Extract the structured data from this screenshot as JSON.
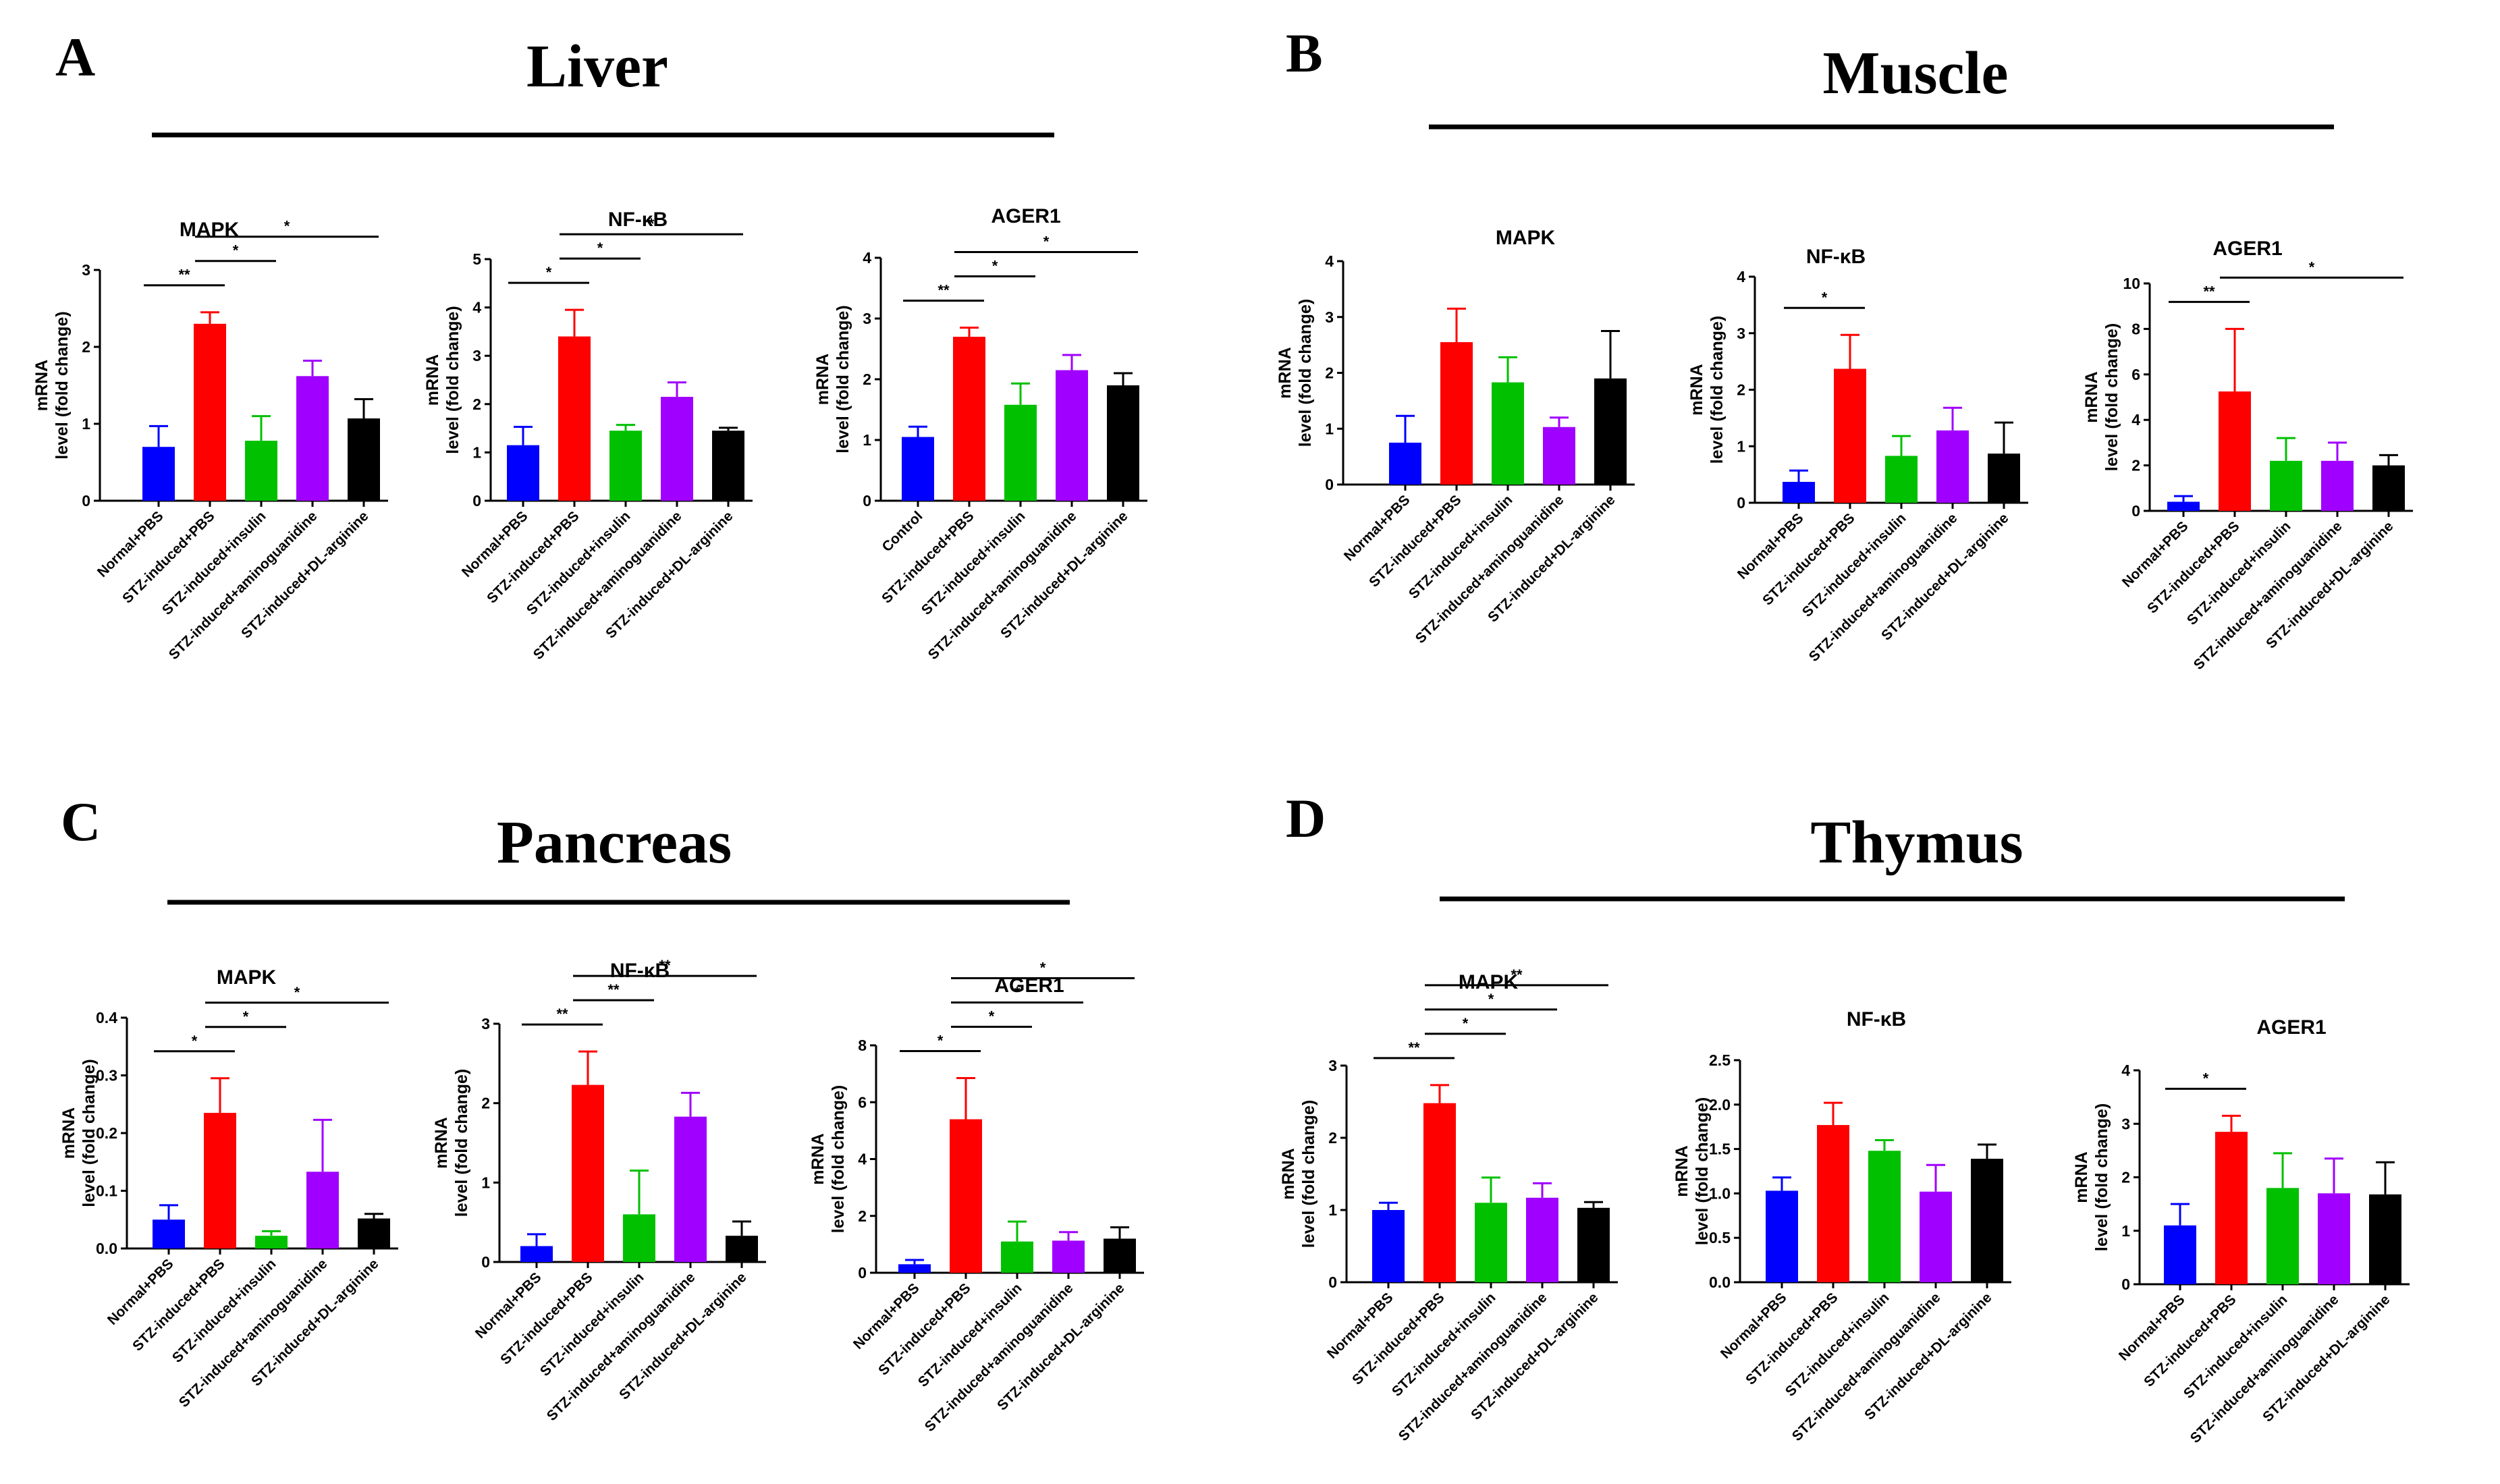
{
  "ylabel_line1": "mRNA",
  "ylabel_line2": "level (fold change)",
  "panels": [
    {
      "letter": "A",
      "title": "Liver"
    },
    {
      "letter": "B",
      "title": "Muscle"
    },
    {
      "letter": "C",
      "title": "Pancreas"
    },
    {
      "letter": "D",
      "title": "Thymus"
    }
  ],
  "colors": [
    "#0000ff",
    "#ff0000",
    "#00c000",
    "#a000ff",
    "#000000"
  ],
  "chart_data": [
    {
      "type": "bar",
      "panel": "A",
      "title": "MAPK",
      "ylabel": "mRNA level (fold change)",
      "categories": [
        "Normal+PBS",
        "STZ-induced+PBS",
        "STZ-induced+insulin",
        "STZ-induced+aminoguanidine",
        "STZ-induced+DL-arginine"
      ],
      "values": [
        0.7,
        2.3,
        0.78,
        1.62,
        1.07
      ],
      "errors": [
        0.27,
        0.15,
        0.32,
        0.2,
        0.25
      ],
      "ylim": [
        0,
        3
      ],
      "yticks": [
        0,
        1,
        2,
        3
      ],
      "significance": [
        {
          "from": 0,
          "to": 1,
          "label": "**"
        },
        {
          "from": 1,
          "to": 2,
          "label": "*"
        },
        {
          "from": 1,
          "to": 4,
          "label": "*"
        }
      ]
    },
    {
      "type": "bar",
      "panel": "A",
      "title": "NF-κB",
      "ylabel": "mRNA level (fold change)",
      "categories": [
        "Normal+PBS",
        "STZ-induced+PBS",
        "STZ-induced+insulin",
        "STZ-induced+aminoguanidine",
        "STZ-induced+DL-arginine"
      ],
      "values": [
        1.15,
        3.4,
        1.45,
        2.15,
        1.45
      ],
      "errors": [
        0.38,
        0.55,
        0.12,
        0.3,
        0.06
      ],
      "ylim": [
        0,
        5
      ],
      "yticks": [
        0,
        1,
        2,
        3,
        4,
        5
      ],
      "significance": [
        {
          "from": 0,
          "to": 1,
          "label": "*"
        },
        {
          "from": 1,
          "to": 2,
          "label": "*"
        },
        {
          "from": 1,
          "to": 4,
          "label": "*"
        }
      ]
    },
    {
      "type": "bar",
      "panel": "A",
      "title": "AGER1",
      "ylabel": "mRNA level (fold change)",
      "categories": [
        "Control",
        "STZ-induced+PBS",
        "STZ-induced+insulin",
        "STZ-induced+aminoguanidine",
        "STZ-induced+DL-arginine"
      ],
      "values": [
        1.05,
        2.7,
        1.58,
        2.15,
        1.9
      ],
      "errors": [
        0.17,
        0.15,
        0.35,
        0.25,
        0.2
      ],
      "ylim": [
        0,
        4
      ],
      "yticks": [
        0,
        1,
        2,
        3,
        4
      ],
      "significance": [
        {
          "from": 0,
          "to": 1,
          "label": "**"
        },
        {
          "from": 1,
          "to": 2,
          "label": "*"
        },
        {
          "from": 1,
          "to": 4,
          "label": "*"
        }
      ]
    },
    {
      "type": "bar",
      "panel": "B",
      "title": "MAPK",
      "ylabel": "mRNA level (fold change)",
      "categories": [
        "Normal+PBS",
        "STZ-induced+PBS",
        "STZ-induced+insulin",
        "STZ-induced+aminoguanidine",
        "STZ-induced+DL-arginine"
      ],
      "values": [
        0.75,
        2.55,
        1.83,
        1.03,
        1.9
      ],
      "errors": [
        0.48,
        0.6,
        0.45,
        0.17,
        0.85
      ],
      "ylim": [
        0,
        4
      ],
      "yticks": [
        0,
        1,
        2,
        3,
        4
      ],
      "significance": []
    },
    {
      "type": "bar",
      "panel": "B",
      "title": "NF-κB",
      "ylabel": "mRNA level (fold change)",
      "categories": [
        "Normal+PBS",
        "STZ-induced+PBS",
        "STZ-induced+insulin",
        "STZ-induced+aminoguanidine",
        "STZ-induced+DL-arginine"
      ],
      "values": [
        0.37,
        2.37,
        0.83,
        1.28,
        0.87
      ],
      "errors": [
        0.2,
        0.6,
        0.35,
        0.4,
        0.55
      ],
      "ylim": [
        0,
        4
      ],
      "yticks": [
        0,
        1,
        2,
        3,
        4
      ],
      "significance": [
        {
          "from": 0,
          "to": 1,
          "label": "*"
        }
      ]
    },
    {
      "type": "bar",
      "panel": "B",
      "title": "AGER1",
      "ylabel": "mRNA level (fold change)",
      "categories": [
        "Normal+PBS",
        "STZ-induced+PBS",
        "STZ-induced+insulin",
        "STZ-induced+aminoguanidine",
        "STZ-induced+DL-arginine"
      ],
      "values": [
        0.4,
        5.25,
        2.2,
        2.2,
        2.0
      ],
      "errors": [
        0.25,
        2.75,
        1.0,
        0.8,
        0.45
      ],
      "ylim": [
        0,
        10
      ],
      "yticks": [
        0,
        2,
        4,
        6,
        8,
        10
      ],
      "significance": [
        {
          "from": 0,
          "to": 1,
          "label": "**"
        },
        {
          "from": 1,
          "to": 4,
          "label": "*"
        }
      ]
    },
    {
      "type": "bar",
      "panel": "C",
      "title": "MAPK",
      "ylabel": "mRNA level (fold change)",
      "categories": [
        "Normal+PBS",
        "STZ-induced+PBS",
        "STZ-induced+insulin",
        "STZ-induced+aminoguanidine",
        "STZ-induced+DL-arginine"
      ],
      "values": [
        0.05,
        0.235,
        0.022,
        0.133,
        0.052
      ],
      "errors": [
        0.025,
        0.06,
        0.008,
        0.09,
        0.008
      ],
      "ylim": [
        0,
        0.4
      ],
      "yticks": [
        0.0,
        0.1,
        0.2,
        0.3,
        0.4
      ],
      "ytick_labels": [
        "0.0",
        "0.1",
        "0.2",
        "0.3",
        "0.4"
      ],
      "significance": [
        {
          "from": 0,
          "to": 1,
          "label": "*"
        },
        {
          "from": 1,
          "to": 2,
          "label": "*"
        },
        {
          "from": 1,
          "to": 4,
          "label": "*"
        }
      ]
    },
    {
      "type": "bar",
      "panel": "C",
      "title": "NF-κB",
      "ylabel": "mRNA level (fold change)",
      "categories": [
        "Normal+PBS",
        "STZ-induced+PBS",
        "STZ-induced+insulin",
        "STZ-induced+aminoguanidine",
        "STZ-induced+DL-arginine"
      ],
      "values": [
        0.2,
        2.23,
        0.6,
        1.83,
        0.33
      ],
      "errors": [
        0.15,
        0.42,
        0.55,
        0.3,
        0.18
      ],
      "ylim": [
        0,
        3
      ],
      "yticks": [
        0,
        1,
        2,
        3
      ],
      "significance": [
        {
          "from": 0,
          "to": 1,
          "label": "**"
        },
        {
          "from": 1,
          "to": 2,
          "label": "**"
        },
        {
          "from": 1,
          "to": 4,
          "label": "**"
        }
      ]
    },
    {
      "type": "bar",
      "panel": "C",
      "title": "AGER1",
      "ylabel": "mRNA level (fold change)",
      "categories": [
        "Normal+PBS",
        "STZ-induced+PBS",
        "STZ-induced+insulin",
        "STZ-induced+aminoguanidine",
        "STZ-induced+DL-arginine"
      ],
      "values": [
        0.3,
        5.4,
        1.1,
        1.13,
        1.2
      ],
      "errors": [
        0.15,
        1.45,
        0.7,
        0.3,
        0.4
      ],
      "ylim": [
        0,
        8
      ],
      "yticks": [
        0,
        2,
        4,
        6,
        8
      ],
      "significance": [
        {
          "from": 0,
          "to": 1,
          "label": "*"
        },
        {
          "from": 1,
          "to": 2,
          "label": "*"
        },
        {
          "from": 1,
          "to": 3,
          "label": "*"
        },
        {
          "from": 1,
          "to": 4,
          "label": "*"
        }
      ]
    },
    {
      "type": "bar",
      "panel": "D",
      "title": "MAPK",
      "ylabel": "mRNA level (fold change)",
      "categories": [
        "Normal+PBS",
        "STZ-induced+PBS",
        "STZ-induced+insulin",
        "STZ-induced+aminoguanidine",
        "STZ-induced+DL-arginine"
      ],
      "values": [
        1.0,
        2.48,
        1.1,
        1.17,
        1.03
      ],
      "errors": [
        0.1,
        0.25,
        0.35,
        0.2,
        0.08
      ],
      "ylim": [
        0,
        3
      ],
      "yticks": [
        0,
        1,
        2,
        3
      ],
      "significance": [
        {
          "from": 0,
          "to": 1,
          "label": "**"
        },
        {
          "from": 1,
          "to": 2,
          "label": "*"
        },
        {
          "from": 1,
          "to": 3,
          "label": "*"
        },
        {
          "from": 1,
          "to": 4,
          "label": "**"
        }
      ]
    },
    {
      "type": "bar",
      "panel": "D",
      "title": "NF-κB",
      "ylabel": "mRNA level (fold change)",
      "categories": [
        "Normal+PBS",
        "STZ-induced+PBS",
        "STZ-induced+insulin",
        "STZ-induced+aminoguanidine",
        "STZ-induced+DL-arginine"
      ],
      "values": [
        1.03,
        1.77,
        1.48,
        1.02,
        1.39
      ],
      "errors": [
        0.15,
        0.25,
        0.12,
        0.3,
        0.16
      ],
      "ylim": [
        0,
        2.5
      ],
      "yticks": [
        0,
        0.5,
        1.0,
        1.5,
        2.0,
        2.5
      ],
      "ytick_labels": [
        "0.0",
        "0.5",
        "1.0",
        "1.5",
        "2.0",
        "2.5"
      ],
      "significance": []
    },
    {
      "type": "bar",
      "panel": "D",
      "title": "AGER1",
      "ylabel": "mRNA level (fold change)",
      "categories": [
        "Normal+PBS",
        "STZ-induced+PBS",
        "STZ-induced+insulin",
        "STZ-induced+aminoguanidine",
        "STZ-induced+DL-arginine"
      ],
      "values": [
        1.1,
        2.85,
        1.8,
        1.7,
        1.68
      ],
      "errors": [
        0.4,
        0.3,
        0.65,
        0.65,
        0.6
      ],
      "ylim": [
        0,
        4
      ],
      "yticks": [
        0,
        1,
        2,
        3,
        4
      ],
      "significance": [
        {
          "from": 0,
          "to": 1,
          "label": "*"
        }
      ]
    }
  ]
}
